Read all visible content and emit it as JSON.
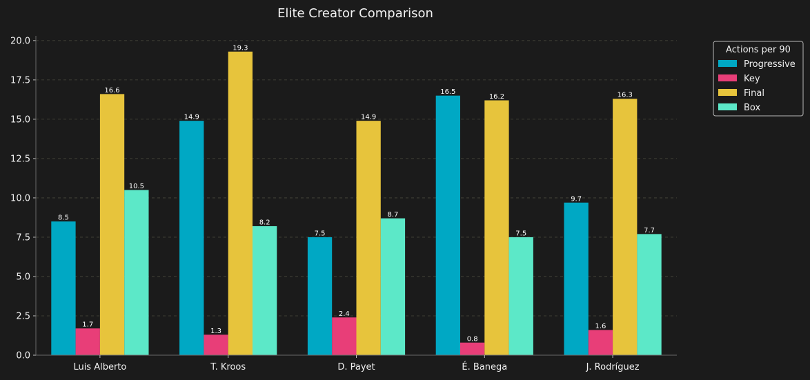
{
  "chart_data": {
    "type": "bar",
    "title": "Elite Creator Comparison",
    "xlabel": "",
    "ylabel": "",
    "categories": [
      "Luis Alberto",
      "T. Kroos",
      "D. Payet",
      "É. Banega",
      "J. Rodríguez"
    ],
    "series": [
      {
        "name": "Progressive",
        "color": "#00a8c4",
        "values": [
          8.5,
          14.9,
          7.5,
          16.5,
          9.7
        ]
      },
      {
        "name": "Key",
        "color": "#e83e78",
        "values": [
          1.7,
          1.3,
          2.4,
          0.8,
          1.6
        ]
      },
      {
        "name": "Final",
        "color": "#e7c43c",
        "values": [
          16.6,
          19.3,
          14.9,
          16.2,
          16.3
        ]
      },
      {
        "name": "Box",
        "color": "#5ce8c8",
        "values": [
          10.5,
          8.2,
          8.7,
          7.5,
          7.7
        ]
      }
    ],
    "data_labels": [
      [
        "8.5",
        "14.9",
        "7.5",
        "16.5",
        "9.7"
      ],
      [
        "1.7",
        "1.3",
        "2.4",
        "0.8",
        "1.6"
      ],
      [
        "16.6",
        "19.3",
        "14.9",
        "16.2",
        "16.3"
      ],
      [
        "10.5",
        "8.2",
        "8.7",
        "7.5",
        "7.7"
      ]
    ],
    "yticks": [
      "0.0",
      "2.5",
      "5.0",
      "7.5",
      "10.0",
      "12.5",
      "15.0",
      "17.5",
      "20.0"
    ],
    "ylim": [
      0,
      20.3
    ],
    "legend_title": "Actions per 90",
    "legend_position": "top-right outside",
    "grid": "horizontal dashed",
    "background": "#1b1b1b"
  }
}
